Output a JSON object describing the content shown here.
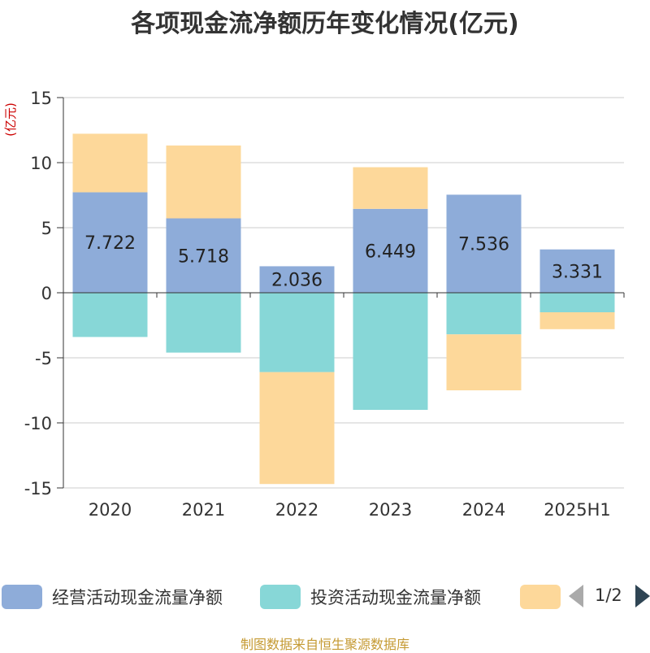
{
  "chart_data": {
    "type": "bar",
    "stacked": true,
    "title": "各项现金流净额历年变化情况(亿元)",
    "unit_label": "(亿元)",
    "categories": [
      "2020",
      "2021",
      "2022",
      "2023",
      "2024",
      "2025H1"
    ],
    "ylim": [
      -15,
      15
    ],
    "yticks": [
      15,
      10,
      5,
      0,
      -5,
      -10,
      -15
    ],
    "ytick_labels": [
      "15",
      "10",
      "5",
      "0",
      "-5",
      "-10",
      "-15"
    ],
    "grid": true,
    "series": [
      {
        "name": "经营活动现金流量净额",
        "color": "#8eacd9",
        "values": [
          7.722,
          5.718,
          2.036,
          6.449,
          7.536,
          3.331
        ],
        "labels": [
          "7.722",
          "5.718",
          "2.036",
          "6.449",
          "7.536",
          "3.331"
        ]
      },
      {
        "name": "投资活动现金流量净额",
        "color": "#87d7d7",
        "values": [
          -3.4,
          -4.6,
          -6.1,
          -9.0,
          -3.2,
          -1.5
        ]
      },
      {
        "name": "",
        "color": "#fdd89a",
        "values": [
          4.5,
          5.6,
          -8.6,
          3.2,
          -4.3,
          -1.3
        ]
      }
    ]
  },
  "pager": {
    "text": "1/2"
  },
  "footer": "制图数据来自恒生聚源数据库"
}
